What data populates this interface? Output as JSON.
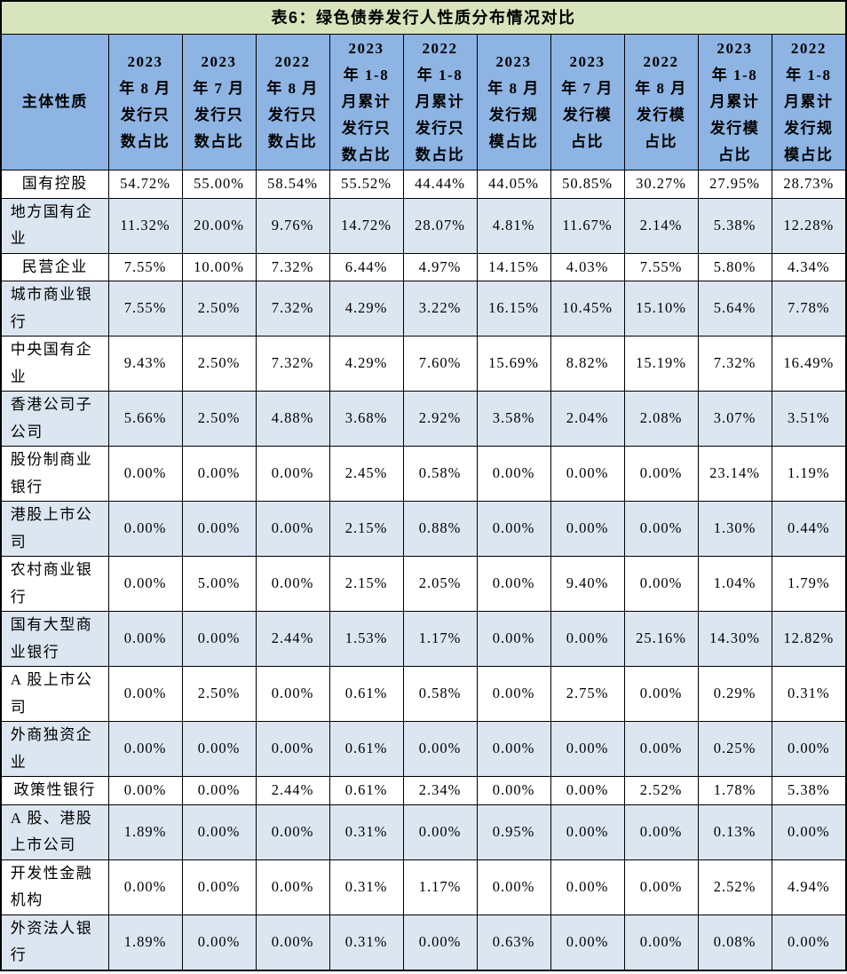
{
  "title": "表6：绿色债券发行人性质分布情况对比",
  "header": {
    "first": "主体性质",
    "columns": [
      {
        "lines": [
          "2023",
          "年 8 月",
          "发行只",
          "数占比"
        ]
      },
      {
        "lines": [
          "2023",
          "年 7 月",
          "发行只",
          "数占比"
        ]
      },
      {
        "lines": [
          "2022",
          "年 8 月",
          "发行只",
          "数占比"
        ]
      },
      {
        "lines": [
          "2023",
          "年 1-8",
          "月累计",
          "发行只",
          "数占比"
        ]
      },
      {
        "lines": [
          "2022",
          "年 1-8",
          "月累计",
          "发行只",
          "数占比"
        ]
      },
      {
        "lines": [
          "2023",
          "年 8 月",
          "发行规",
          "模占比"
        ]
      },
      {
        "lines": [
          "2023",
          "年 7 月",
          "发行模",
          "占比"
        ]
      },
      {
        "lines": [
          "2022",
          "年 8 月",
          "发行模",
          "占比"
        ]
      },
      {
        "lines": [
          "2023",
          "年 1-8",
          "月累计",
          "发行模",
          "占比"
        ]
      },
      {
        "lines": [
          "2022",
          "年 1-8",
          "月累计",
          "发行规",
          "模占比"
        ]
      }
    ]
  },
  "rows": [
    {
      "label": "国有控股",
      "values": [
        "54.72%",
        "55.00%",
        "58.54%",
        "55.52%",
        "44.44%",
        "44.05%",
        "50.85%",
        "30.27%",
        "27.95%",
        "28.73%"
      ]
    },
    {
      "label": "地方国有企业",
      "values": [
        "11.32%",
        "20.00%",
        "9.76%",
        "14.72%",
        "28.07%",
        "4.81%",
        "11.67%",
        "2.14%",
        "5.38%",
        "12.28%"
      ]
    },
    {
      "label": "民营企业",
      "values": [
        "7.55%",
        "10.00%",
        "7.32%",
        "6.44%",
        "4.97%",
        "14.15%",
        "4.03%",
        "7.55%",
        "5.80%",
        "4.34%"
      ]
    },
    {
      "label": "城市商业银行",
      "values": [
        "7.55%",
        "2.50%",
        "7.32%",
        "4.29%",
        "3.22%",
        "16.15%",
        "10.45%",
        "15.10%",
        "5.64%",
        "7.78%"
      ]
    },
    {
      "label": "中央国有企业",
      "values": [
        "9.43%",
        "2.50%",
        "7.32%",
        "4.29%",
        "7.60%",
        "15.69%",
        "8.82%",
        "15.19%",
        "7.32%",
        "16.49%"
      ]
    },
    {
      "label": "香港公司子公司",
      "values": [
        "5.66%",
        "2.50%",
        "4.88%",
        "3.68%",
        "2.92%",
        "3.58%",
        "2.04%",
        "2.08%",
        "3.07%",
        "3.51%"
      ]
    },
    {
      "label": "股份制商业银行",
      "values": [
        "0.00%",
        "0.00%",
        "0.00%",
        "2.45%",
        "0.58%",
        "0.00%",
        "0.00%",
        "0.00%",
        "23.14%",
        "1.19%"
      ]
    },
    {
      "label": "港股上市公司",
      "values": [
        "0.00%",
        "0.00%",
        "0.00%",
        "2.15%",
        "0.88%",
        "0.00%",
        "0.00%",
        "0.00%",
        "1.30%",
        "0.44%"
      ]
    },
    {
      "label": "农村商业银行",
      "values": [
        "0.00%",
        "5.00%",
        "0.00%",
        "2.15%",
        "2.05%",
        "0.00%",
        "9.40%",
        "0.00%",
        "1.04%",
        "1.79%"
      ]
    },
    {
      "label": "国有大型商业银行",
      "values": [
        "0.00%",
        "0.00%",
        "2.44%",
        "1.53%",
        "1.17%",
        "0.00%",
        "0.00%",
        "25.16%",
        "14.30%",
        "12.82%"
      ]
    },
    {
      "label": "A 股上市公司",
      "values": [
        "0.00%",
        "2.50%",
        "0.00%",
        "0.61%",
        "0.58%",
        "0.00%",
        "2.75%",
        "0.00%",
        "0.29%",
        "0.31%"
      ]
    },
    {
      "label": "外商独资企业",
      "values": [
        "0.00%",
        "0.00%",
        "0.00%",
        "0.61%",
        "0.00%",
        "0.00%",
        "0.00%",
        "0.00%",
        "0.25%",
        "0.00%"
      ]
    },
    {
      "label": "政策性银行",
      "values": [
        "0.00%",
        "0.00%",
        "2.44%",
        "0.61%",
        "2.34%",
        "0.00%",
        "0.00%",
        "2.52%",
        "1.78%",
        "5.38%"
      ]
    },
    {
      "label": "A 股、港股上市公司",
      "values": [
        "1.89%",
        "0.00%",
        "0.00%",
        "0.31%",
        "0.00%",
        "0.95%",
        "0.00%",
        "0.00%",
        "0.13%",
        "0.00%"
      ]
    },
    {
      "label": "开发性金融机构",
      "values": [
        "0.00%",
        "0.00%",
        "0.00%",
        "0.31%",
        "1.17%",
        "0.00%",
        "0.00%",
        "0.00%",
        "2.52%",
        "4.94%"
      ]
    },
    {
      "label": "外资法人银行",
      "values": [
        "1.89%",
        "0.00%",
        "0.00%",
        "0.31%",
        "0.00%",
        "0.63%",
        "0.00%",
        "0.00%",
        "0.08%",
        "0.00%"
      ]
    }
  ],
  "colors": {
    "title_bg": "#d7e4bc",
    "header_bg": "#8db4e2",
    "row_bg": "#ffffff",
    "row_alt_bg": "#dce6f1",
    "border": "#000000"
  }
}
